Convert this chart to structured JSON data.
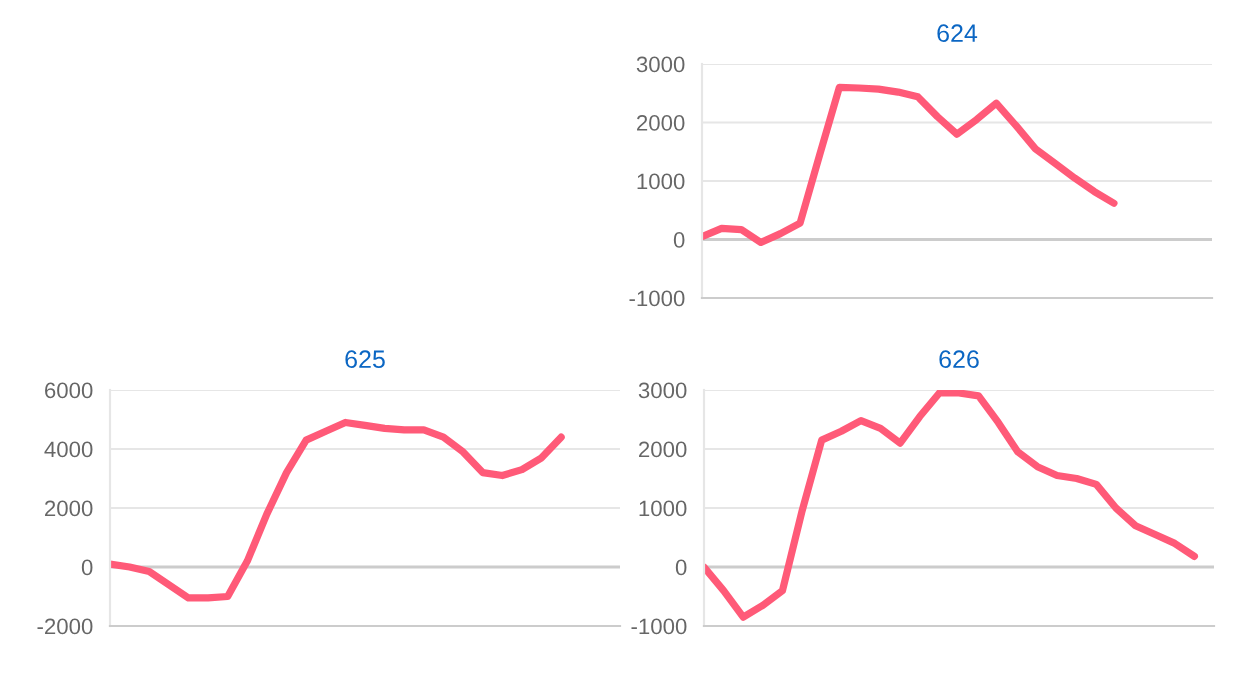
{
  "chart_data": [
    {
      "type": "line",
      "title": "624",
      "categories": [
        null,
        null,
        null,
        null,
        null,
        null,
        null,
        null,
        null,
        null,
        null,
        null,
        null,
        null,
        null,
        null,
        null,
        null,
        null,
        null,
        null,
        null,
        null,
        null,
        null,
        null,
        null
      ],
      "series": [
        {
          "color": "#ff5a78",
          "values": [
            50,
            190,
            170,
            -50,
            100,
            280,
            1450,
            2600,
            2590,
            2570,
            2520,
            2440,
            2100,
            1800,
            2050,
            2330,
            1950,
            1550,
            1300,
            1050,
            820,
            620,
            null,
            null,
            null,
            null,
            null
          ]
        }
      ],
      "ylim": [
        -1000,
        3000
      ],
      "yticks": [
        -1000,
        0,
        1000,
        2000,
        3000
      ],
      "grid": "y",
      "tick_labels": "y",
      "line_style": "solid"
    },
    {
      "type": "line",
      "title": "625",
      "categories": [
        null,
        null,
        null,
        null,
        null,
        null,
        null,
        null,
        null,
        null,
        null,
        null,
        null,
        null,
        null,
        null,
        null,
        null,
        null,
        null,
        null,
        null,
        null,
        null,
        null,
        null,
        null
      ],
      "series": [
        {
          "color": "#ff5a78",
          "values": [
            100,
            0,
            -150,
            -600,
            -1050,
            -1050,
            -1000,
            200,
            1800,
            3200,
            4300,
            4600,
            4900,
            4800,
            4700,
            4650,
            4650,
            4400,
            3900,
            3200,
            3100,
            3300,
            3700,
            4400,
            null,
            null,
            null
          ]
        }
      ],
      "ylim": [
        -2000,
        6000
      ],
      "yticks": [
        -2000,
        0,
        2000,
        4000,
        6000
      ],
      "grid": "y",
      "tick_labels": "y",
      "line_style": "solid"
    },
    {
      "type": "line",
      "title": "626",
      "categories": [
        null,
        null,
        null,
        null,
        null,
        null,
        null,
        null,
        null,
        null,
        null,
        null,
        null,
        null,
        null,
        null,
        null,
        null,
        null,
        null,
        null,
        null,
        null,
        null,
        null,
        null,
        null
      ],
      "series": [
        {
          "color": "#ff5a78",
          "values": [
            0,
            -400,
            -850,
            -650,
            -400,
            950,
            2150,
            2300,
            2480,
            2350,
            2100,
            2550,
            2950,
            2950,
            2900,
            2450,
            1950,
            1700,
            1550,
            1500,
            1400,
            1000,
            700,
            550,
            400,
            180,
            null
          ]
        }
      ],
      "ylim": [
        -1000,
        3000
      ],
      "yticks": [
        -1000,
        0,
        1000,
        2000,
        3000
      ],
      "grid": "y",
      "tick_labels": "y",
      "line_style": "solid"
    }
  ]
}
